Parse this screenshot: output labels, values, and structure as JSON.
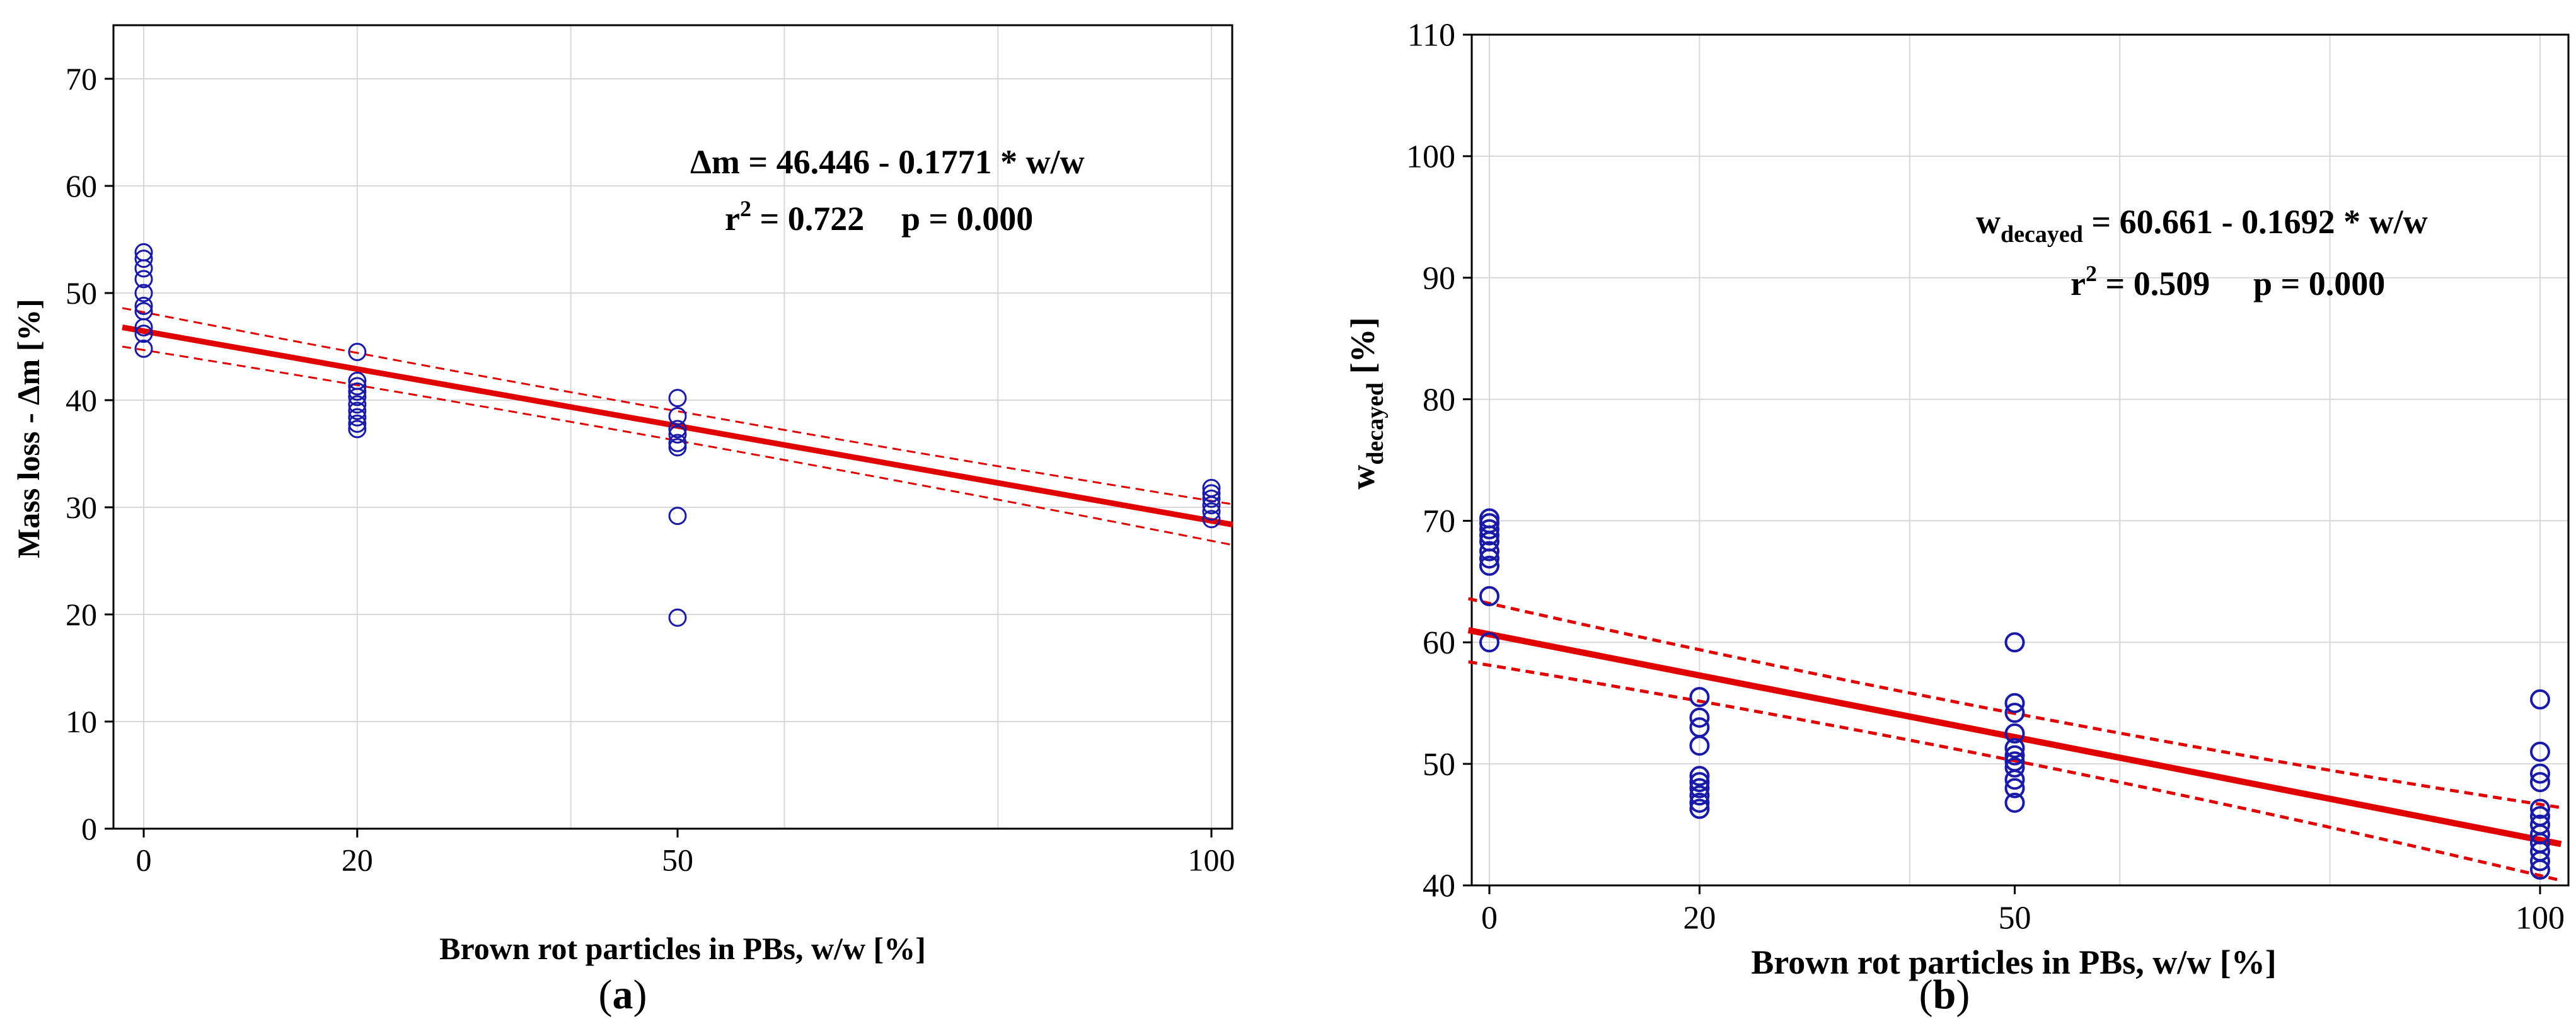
{
  "colors": {
    "regression_line": "#e00000",
    "confidence_band": "#e00000",
    "points": "#1a1aa8",
    "grid": "#d8d8d8",
    "axis": "#000000",
    "background": "#ffffff"
  },
  "panels": [
    {
      "panel_label": "(a)",
      "equation_main": "Δm = 46.446 - 0.1771 * w/w",
      "r2_prefix": "r",
      "r2_exponent": "2",
      "r2_value": " = 0.722",
      "p_text": "p = 0.000"
    },
    {
      "panel_label": "(b)",
      "eq_w": "w",
      "eq_sub": "decayed",
      "eq_rest": " = 60.661 - 0.1692 * w/w",
      "r2_prefix": "r",
      "r2_exponent": "2",
      "r2_value": " = 0.509",
      "p_text": "p = 0.000",
      "ylabel_w": "w",
      "ylabel_sub": "decayed",
      "ylabel_rest": " [%]"
    }
  ],
  "chart_data": [
    {
      "type": "scatter",
      "title": "",
      "xlabel": "Brown rot particles in PBs, w/w [%]",
      "ylabel": "Mass loss - Δm [%]",
      "xlim": [
        -2,
        102
      ],
      "ylim": [
        0,
        75
      ],
      "x_ticks": [
        0,
        20,
        50,
        100
      ],
      "y_ticks": [
        0,
        10,
        20,
        30,
        40,
        50,
        60,
        70
      ],
      "x_grid": [
        0,
        20,
        40,
        60,
        80,
        100
      ],
      "y_grid": [
        0,
        10,
        20,
        30,
        40,
        50,
        60,
        70
      ],
      "regression": {
        "intercept": 46.446,
        "slope": -0.1771
      },
      "confidence_band": {
        "left_offset": 1.8,
        "mid_offset": 0.9,
        "right_offset": 1.9
      },
      "x_stretch_start": 70,
      "series": [
        {
          "name": "0",
          "x": 0,
          "y": [
            44.8,
            46.2,
            46.8,
            48.3,
            48.8,
            50.0,
            51.3,
            52.3,
            53.2,
            53.8
          ]
        },
        {
          "name": "20",
          "x": 20,
          "y": [
            37.3,
            37.8,
            38.4,
            39.0,
            39.6,
            40.3,
            40.8,
            41.3,
            41.8,
            44.5
          ]
        },
        {
          "name": "50",
          "x": 50,
          "y": [
            19.7,
            29.2,
            35.6,
            36.0,
            36.8,
            37.3,
            38.5,
            40.2
          ]
        },
        {
          "name": "100",
          "x": 100,
          "y": [
            28.9,
            29.6,
            30.2,
            30.8,
            31.3,
            31.8
          ]
        }
      ]
    },
    {
      "type": "scatter",
      "title": "",
      "xlabel": "Brown rot particles in PBs, w/w [%]",
      "ylabel": "w_decayed [%]",
      "xlim": [
        -2,
        102
      ],
      "ylim": [
        40,
        110
      ],
      "x_ticks": [
        0,
        20,
        50,
        100
      ],
      "y_ticks": [
        40,
        50,
        60,
        70,
        80,
        90,
        100,
        110
      ],
      "x_grid": [
        0,
        20,
        40,
        60,
        80,
        100
      ],
      "y_grid": [
        40,
        50,
        60,
        70,
        80,
        90,
        100,
        110
      ],
      "regression": {
        "intercept": 60.661,
        "slope": -0.1692
      },
      "confidence_band": {
        "left_offset": 2.6,
        "mid_offset": 1.1,
        "right_offset": 3.0
      },
      "x_stretch_start": 70,
      "series": [
        {
          "name": "0",
          "x": 0,
          "y": [
            60.0,
            63.8,
            66.3,
            66.9,
            67.5,
            68.3,
            68.8,
            69.3,
            69.8,
            70.2
          ]
        },
        {
          "name": "20",
          "x": 20,
          "y": [
            46.3,
            46.8,
            47.4,
            48.0,
            48.5,
            49.0,
            51.5,
            53.0,
            53.8,
            55.5
          ]
        },
        {
          "name": "50",
          "x": 50,
          "y": [
            46.8,
            48.0,
            48.7,
            49.7,
            50.2,
            50.7,
            51.3,
            52.5,
            54.2,
            55.0,
            60.0
          ]
        },
        {
          "name": "100",
          "x": 100,
          "y": [
            41.3,
            42.0,
            42.8,
            43.5,
            44.2,
            45.0,
            45.7,
            46.3,
            48.5,
            49.2,
            51.0,
            55.3
          ]
        }
      ]
    }
  ]
}
